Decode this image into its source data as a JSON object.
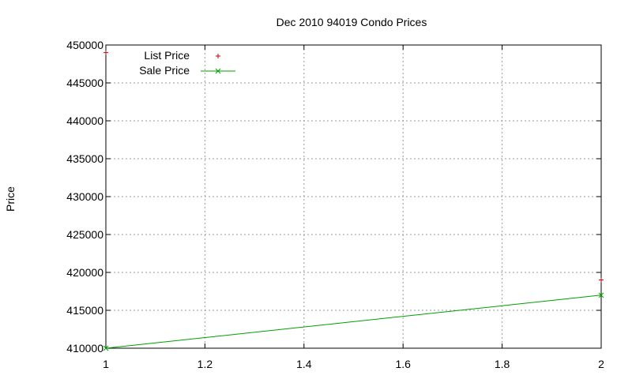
{
  "chart_data": {
    "type": "line",
    "title": "Dec 2010 94019 Condo Prices",
    "xlabel": "",
    "ylabel": "Price",
    "x": [
      1,
      2
    ],
    "xlim": [
      1,
      2
    ],
    "ylim": [
      410000,
      450000
    ],
    "xticks": [
      "1",
      "1.2",
      "1.4",
      "1.6",
      "1.8",
      "2"
    ],
    "yticks": [
      "410000",
      "415000",
      "420000",
      "425000",
      "430000",
      "435000",
      "440000",
      "445000",
      "450000"
    ],
    "grid": true,
    "legend_position": "top-left",
    "series": [
      {
        "name": "List Price",
        "style": "points",
        "marker": "plus",
        "color": "#cc0000",
        "values": [
          449000,
          419000
        ]
      },
      {
        "name": "Sale Price",
        "style": "linespoints",
        "marker": "cross",
        "color": "#00a000",
        "values": [
          410000,
          417000
        ]
      }
    ]
  }
}
